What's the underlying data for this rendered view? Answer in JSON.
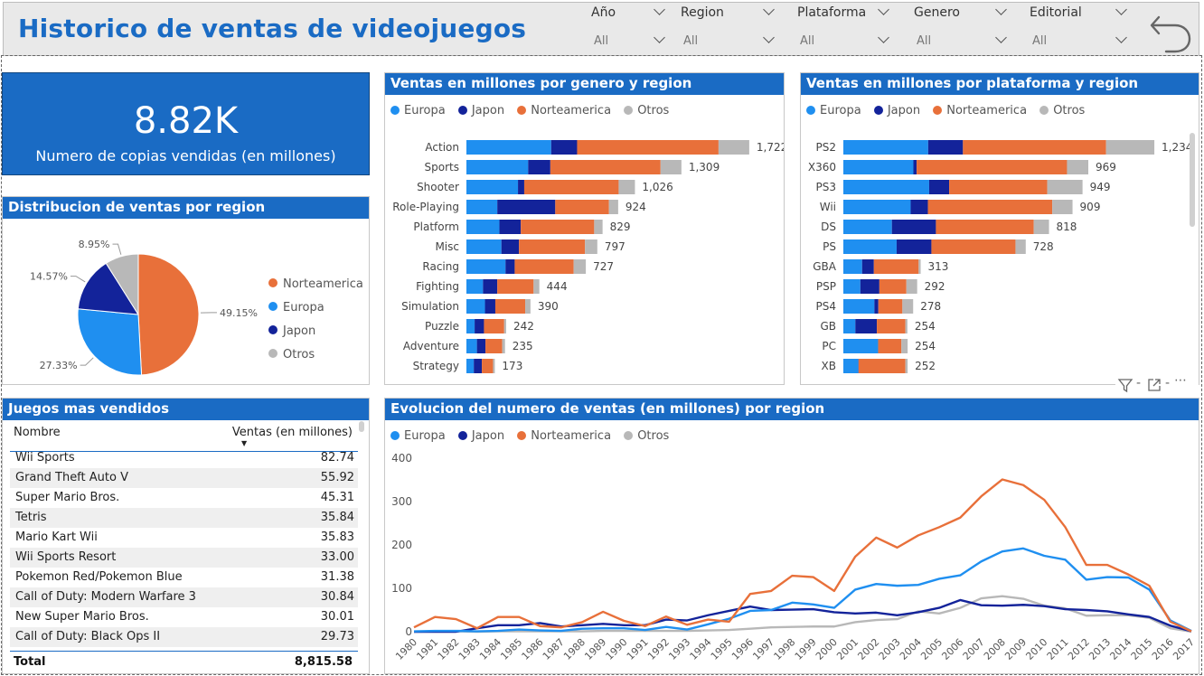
{
  "header": {
    "title": "Historico de ventas de videojuegos",
    "filters": [
      {
        "label": "Año",
        "value": "All"
      },
      {
        "label": "Region",
        "value": "All"
      },
      {
        "label": "Plataforma",
        "value": "All"
      },
      {
        "label": "Genero",
        "value": "All"
      },
      {
        "label": "Editorial",
        "value": "All"
      }
    ],
    "back_icon": "back-arrow-icon"
  },
  "colors": {
    "brand": "#1a6bc4",
    "europa": "#1f8ff0",
    "japon": "#13239a",
    "norteamerica": "#e8703a",
    "otros": "#b8b8b8"
  },
  "kpi": {
    "value": "8.82K",
    "label": "Numero de copias vendidas (en millones)"
  },
  "legend": {
    "europa": "Europa",
    "japon": "Japon",
    "norteamerica": "Norteamerica",
    "otros": "Otros"
  },
  "pie": {
    "title": "Distribucion de ventas por region"
  },
  "genre": {
    "title": "Ventas en millones por genero y region"
  },
  "platform": {
    "title": "Ventas en millones por plataforma y region"
  },
  "table": {
    "title": "Juegos mas vendidos",
    "col_name": "Nombre",
    "col_sales": "Ventas (en millones)",
    "rows": [
      {
        "name": "Wii Sports",
        "sales": "82.74"
      },
      {
        "name": "Grand Theft Auto V",
        "sales": "55.92"
      },
      {
        "name": "Super Mario Bros.",
        "sales": "45.31"
      },
      {
        "name": "Tetris",
        "sales": "35.84"
      },
      {
        "name": "Mario Kart Wii",
        "sales": "35.83"
      },
      {
        "name": "Wii Sports Resort",
        "sales": "33.00"
      },
      {
        "name": "Pokemon Red/Pokemon Blue",
        "sales": "31.38"
      },
      {
        "name": "Call of Duty: Modern Warfare 3",
        "sales": "30.84"
      },
      {
        "name": "New Super Mario Bros.",
        "sales": "30.01"
      },
      {
        "name": "Call of Duty: Black Ops II",
        "sales": "29.73"
      }
    ],
    "total_label": "Total",
    "total_value": "8,815.58"
  },
  "line": {
    "title": "Evolucion del numero de ventas (en millones) por region"
  },
  "chart_data": [
    {
      "type": "pie",
      "title": "Distribucion de ventas por region",
      "legend": [
        "Norteamerica",
        "Europa",
        "Japon",
        "Otros"
      ],
      "slices": [
        {
          "name": "Norteamerica",
          "value": 49.15,
          "label": "49.15%"
        },
        {
          "name": "Europa",
          "value": 27.33,
          "label": "27.33%"
        },
        {
          "name": "Japon",
          "value": 14.57,
          "label": "14.57%"
        },
        {
          "name": "Otros",
          "value": 8.95,
          "label": "8.95%"
        }
      ]
    },
    {
      "type": "bar",
      "title": "Ventas en millones por genero y region",
      "orientation": "horizontal-stacked",
      "categories": [
        "Action",
        "Sports",
        "Shooter",
        "Role-Playing",
        "Platform",
        "Misc",
        "Racing",
        "Fighting",
        "Simulation",
        "Puzzle",
        "Adventure",
        "Strategy"
      ],
      "series": [
        {
          "name": "Europa",
          "values": [
            516,
            376,
            314,
            188,
            201,
            213,
            238,
            101,
            113,
            50,
            64,
            45
          ]
        },
        {
          "name": "Japon",
          "values": [
            158,
            135,
            38,
            353,
            130,
            107,
            56,
            87,
            63,
            57,
            52,
            49
          ]
        },
        {
          "name": "Norteamerica",
          "values": [
            861,
            671,
            575,
            327,
            447,
            402,
            359,
            221,
            182,
            123,
            102,
            68
          ]
        },
        {
          "name": "Otros",
          "values": [
            187,
            127,
            99,
            56,
            51,
            75,
            74,
            35,
            32,
            12,
            17,
            11
          ]
        }
      ],
      "totals": [
        "1,722",
        "1,309",
        "1,026",
        "924",
        "829",
        "797",
        "727",
        "444",
        "390",
        "242",
        "235",
        "173"
      ]
    },
    {
      "type": "bar",
      "title": "Ventas en millones por plataforma y region",
      "orientation": "horizontal-stacked",
      "categories": [
        "PS2",
        "X360",
        "PS3",
        "Wii",
        "DS",
        "PS",
        "GBA",
        "PSP",
        "PS4",
        "GB",
        "PC",
        "XB"
      ],
      "series": [
        {
          "name": "Europa",
          "values": [
            339,
            280,
            343,
            269,
            194,
            213,
            75,
            68,
            124,
            48,
            139,
            60
          ]
        },
        {
          "name": "Japon",
          "values": [
            139,
            13,
            80,
            69,
            176,
            139,
            47,
            76,
            16,
            86,
            0,
            1
          ]
        },
        {
          "name": "Norteamerica",
          "values": [
            572,
            601,
            392,
            497,
            391,
            336,
            179,
            108,
            96,
            114,
            93,
            187
          ]
        },
        {
          "name": "Otros",
          "values": [
            193,
            85,
            141,
            81,
            61,
            41,
            8,
            43,
            43,
            8,
            25,
            9
          ]
        }
      ],
      "totals": [
        "1,234",
        "969",
        "949",
        "909",
        "818",
        "728",
        "313",
        "292",
        "278",
        "254",
        "254",
        "252"
      ]
    },
    {
      "type": "line",
      "title": "Evolucion del numero de ventas (en millones) por region",
      "x": [
        1980,
        1981,
        1982,
        1983,
        1984,
        1985,
        1986,
        1987,
        1988,
        1989,
        1990,
        1991,
        1992,
        1993,
        1994,
        1995,
        1996,
        1997,
        1998,
        1999,
        2000,
        2001,
        2002,
        2003,
        2004,
        2005,
        2006,
        2007,
        2008,
        2009,
        2010,
        2011,
        2012,
        2013,
        2014,
        2015,
        2016,
        2017
      ],
      "ylim": [
        0,
        400
      ],
      "yticks": [
        0,
        100,
        200,
        300,
        400
      ],
      "series": [
        {
          "name": "Europa",
          "values": [
            1,
            2,
            2,
            1,
            2,
            5,
            3,
            2,
            7,
            8,
            8,
            4,
            11,
            5,
            17,
            30,
            48,
            50,
            67,
            63,
            55,
            97,
            110,
            106,
            108,
            122,
            130,
            162,
            185,
            192,
            175,
            166,
            120,
            126,
            125,
            97,
            26,
            2
          ]
        },
        {
          "name": "Japon",
          "values": [
            0,
            0,
            0,
            8,
            15,
            15,
            20,
            12,
            15,
            18,
            15,
            15,
            28,
            26,
            38,
            48,
            58,
            50,
            51,
            52,
            45,
            42,
            44,
            38,
            45,
            55,
            73,
            61,
            60,
            62,
            59,
            52,
            50,
            47,
            40,
            34,
            14,
            1
          ]
        },
        {
          "name": "Norteamerica",
          "values": [
            10,
            34,
            29,
            8,
            34,
            34,
            13,
            10,
            22,
            46,
            25,
            13,
            35,
            16,
            28,
            23,
            87,
            94,
            129,
            126,
            94,
            173,
            217,
            194,
            222,
            241,
            263,
            312,
            351,
            338,
            304,
            241,
            154,
            154,
            132,
            106,
            23,
            1
          ]
        },
        {
          "name": "Otros",
          "values": [
            0,
            1,
            1,
            0,
            1,
            1,
            1,
            1,
            1,
            2,
            2,
            2,
            2,
            2,
            3,
            4,
            7,
            10,
            11,
            12,
            12,
            22,
            27,
            29,
            47,
            42,
            55,
            77,
            82,
            76,
            60,
            54,
            37,
            38,
            38,
            32,
            8,
            0
          ]
        }
      ]
    }
  ]
}
